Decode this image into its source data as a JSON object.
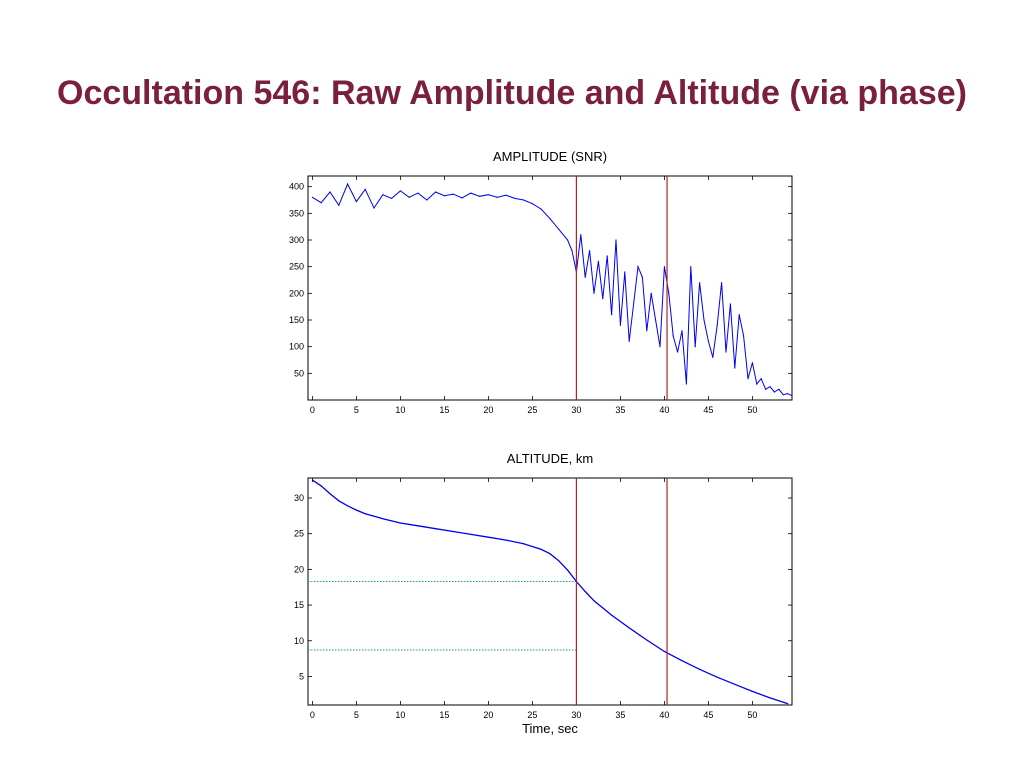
{
  "slide": {
    "title": "Occultation 546: Raw Amplitude and Altitude (via phase)"
  },
  "colors": {
    "title": "#7a1f3d",
    "series": "#0000ee",
    "marker_line": "#b22222",
    "reference_line": "#1a9a9a"
  },
  "chart_data": [
    {
      "type": "line",
      "title": "AMPLITUDE (SNR)",
      "xlabel": "",
      "ylabel": "",
      "xlim": [
        -0.5,
        54.5
      ],
      "ylim": [
        0,
        420
      ],
      "xticks": [
        0,
        5,
        10,
        15,
        20,
        25,
        30,
        35,
        40,
        45,
        50
      ],
      "yticks": [
        50,
        100,
        150,
        200,
        250,
        300,
        350,
        400
      ],
      "grid": false,
      "series": [
        {
          "x": [
            0,
            1,
            2,
            3,
            4,
            5,
            6,
            7,
            8,
            9,
            10,
            11,
            12,
            13,
            14,
            15,
            16,
            17,
            18,
            19,
            20,
            21,
            22,
            23,
            24,
            25,
            26,
            27,
            28,
            29,
            29.5,
            30,
            30.5,
            31,
            31.5,
            32,
            32.5,
            33,
            33.5,
            34,
            34.5,
            35,
            35.5,
            36,
            36.5,
            37,
            37.5,
            38,
            38.5,
            39,
            39.5,
            40,
            40.5,
            41,
            41.5,
            42,
            42.5,
            43,
            43.5,
            44,
            44.5,
            45,
            45.5,
            46,
            46.5,
            47,
            47.5,
            48,
            48.5,
            49,
            49.5,
            50,
            50.5,
            51,
            51.5,
            52,
            52.5,
            53,
            53.5,
            54,
            54.5
          ],
          "values": [
            380,
            370,
            390,
            365,
            405,
            372,
            395,
            360,
            385,
            378,
            392,
            380,
            388,
            375,
            390,
            383,
            386,
            379,
            388,
            382,
            385,
            380,
            384,
            378,
            375,
            368,
            358,
            340,
            320,
            300,
            280,
            240,
            310,
            230,
            280,
            200,
            260,
            190,
            270,
            160,
            300,
            140,
            240,
            110,
            180,
            250,
            230,
            130,
            200,
            150,
            100,
            250,
            200,
            120,
            90,
            130,
            30,
            250,
            100,
            220,
            150,
            110,
            80,
            140,
            220,
            90,
            180,
            60,
            160,
            120,
            40,
            70,
            30,
            40,
            20,
            25,
            15,
            20,
            10,
            12,
            8
          ]
        }
      ],
      "vlines": [
        30,
        40.3
      ]
    },
    {
      "type": "line",
      "title": "ALTITUDE, km",
      "xlabel": "Time, sec",
      "ylabel": "",
      "xlim": [
        -0.5,
        54.5
      ],
      "ylim": [
        1,
        32.8
      ],
      "xticks": [
        0,
        5,
        10,
        15,
        20,
        25,
        30,
        35,
        40,
        45,
        50
      ],
      "yticks": [
        5,
        10,
        15,
        20,
        25,
        30
      ],
      "grid": false,
      "series": [
        {
          "x": [
            0,
            1,
            2,
            3,
            4,
            5,
            6,
            8,
            10,
            12,
            14,
            16,
            18,
            20,
            22,
            24,
            26,
            27,
            28,
            29,
            30,
            31,
            32,
            34,
            36,
            38,
            40,
            42,
            44,
            46,
            48,
            50,
            52,
            54
          ],
          "values": [
            32.5,
            31.7,
            30.6,
            29.6,
            28.9,
            28.3,
            27.8,
            27.1,
            26.5,
            26.1,
            25.7,
            25.3,
            24.9,
            24.5,
            24.1,
            23.6,
            22.8,
            22.2,
            21.2,
            19.9,
            18.3,
            16.9,
            15.6,
            13.6,
            11.8,
            10.1,
            8.5,
            7.2,
            6.0,
            4.9,
            3.9,
            2.9,
            2.0,
            1.2
          ]
        }
      ],
      "vlines": [
        30,
        40.3
      ],
      "hlines": [
        18.3,
        8.7
      ]
    }
  ]
}
